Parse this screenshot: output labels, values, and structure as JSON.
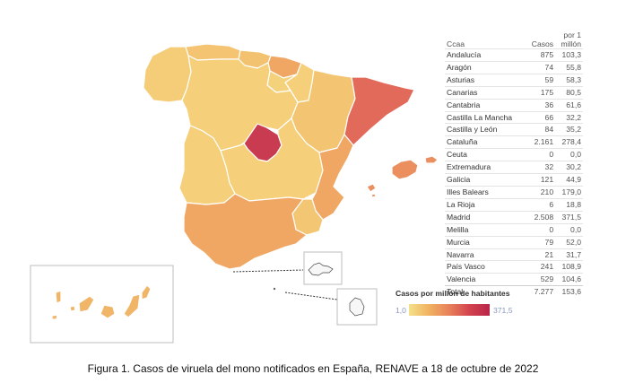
{
  "table": {
    "col_ccaa": "Ccaa",
    "col_casos": "Casos",
    "col_rate_l1": "por 1",
    "col_rate_l2": "millón",
    "rows": [
      {
        "name": "Andalucía",
        "casos": "875",
        "rate": "103,3"
      },
      {
        "name": "Aragón",
        "casos": "74",
        "rate": "55,8"
      },
      {
        "name": "Asturias",
        "casos": "59",
        "rate": "58,3"
      },
      {
        "name": "Canarias",
        "casos": "175",
        "rate": "80,5"
      },
      {
        "name": "Cantabria",
        "casos": "36",
        "rate": "61,6"
      },
      {
        "name": "Castilla La Mancha",
        "casos": "66",
        "rate": "32,2"
      },
      {
        "name": "Castilla y León",
        "casos": "84",
        "rate": "35,2"
      },
      {
        "name": "Cataluña",
        "casos": "2.161",
        "rate": "278,4"
      },
      {
        "name": "Ceuta",
        "casos": "0",
        "rate": "0,0"
      },
      {
        "name": "Extremadura",
        "casos": "32",
        "rate": "30,2"
      },
      {
        "name": "Galicia",
        "casos": "121",
        "rate": "44,9"
      },
      {
        "name": "Illes Balears",
        "casos": "210",
        "rate": "179,0"
      },
      {
        "name": "La Rioja",
        "casos": "6",
        "rate": "18,8"
      },
      {
        "name": "Madrid",
        "casos": "2.508",
        "rate": "371,5"
      },
      {
        "name": "Melilla",
        "casos": "0",
        "rate": "0,0"
      },
      {
        "name": "Murcia",
        "casos": "79",
        "rate": "52,0"
      },
      {
        "name": "Navarra",
        "casos": "21",
        "rate": "31,7"
      },
      {
        "name": "País Vasco",
        "casos": "241",
        "rate": "108,9"
      },
      {
        "name": "Valencia",
        "casos": "529",
        "rate": "104,6"
      }
    ],
    "total": {
      "name": "Total",
      "casos": "7.277",
      "rate": "153,6"
    }
  },
  "legend": {
    "title": "Casos por millón de habitantes",
    "min": "1,0",
    "max": "371,5",
    "color_low": "#f4e08a",
    "color_high": "#b8254a"
  },
  "caption": "Figura 1. Casos de viruela del mono notificados en España, RENAVE a 18 de octubre de 2022",
  "colors": {
    "galicia": "#f5cd78",
    "asturias": "#f4c473",
    "cantabria": "#f3c271",
    "pais_vasco": "#f0a764",
    "navarra": "#f5cf79",
    "la_rioja": "#f4d27c",
    "aragon": "#f3c573",
    "cataluna": "#e26a5a",
    "castilla_leon": "#f5cf79",
    "madrid": "#c83b50",
    "castilla_la_mancha": "#f5cf79",
    "extremadura": "#f5cf79",
    "valencia": "#f0a764",
    "murcia": "#f3c674",
    "andalucia": "#f0a764",
    "baleares": "#eb8f5f",
    "canarias": "#f1b568",
    "ceuta": "#f4e08a",
    "melilla": "#f4e08a"
  }
}
